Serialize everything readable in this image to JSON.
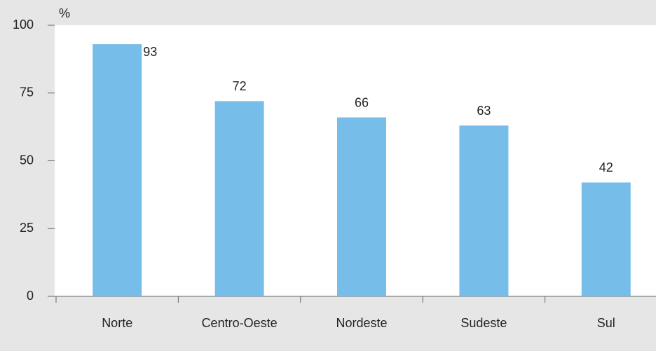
{
  "chart_data": {
    "type": "bar",
    "y_unit": "%",
    "categories": [
      "Norte",
      "Centro-Oeste",
      "Nordeste",
      "Sudeste",
      "Sul"
    ],
    "values": [
      93,
      72,
      66,
      63,
      42
    ],
    "color": "#77bde9",
    "ylim": [
      0,
      100
    ],
    "yticks": [
      0,
      25,
      50,
      75,
      100
    ],
    "grid": false
  }
}
